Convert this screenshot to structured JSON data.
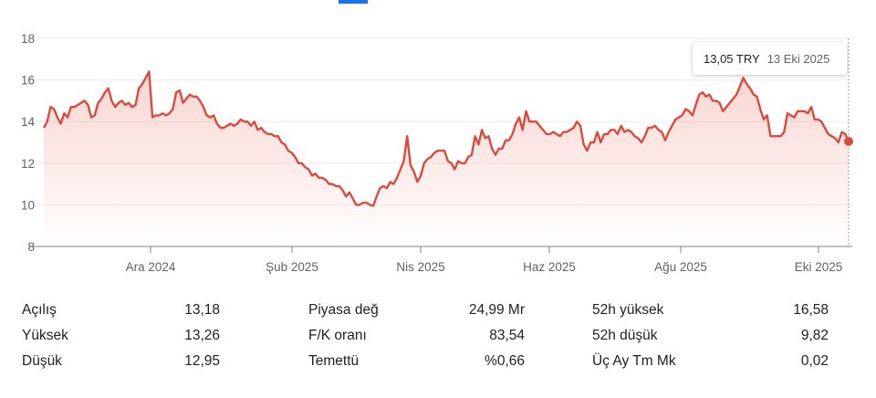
{
  "chart_data": {
    "type": "area",
    "ylim": [
      8,
      18
    ],
    "yticks": [
      "8",
      "10",
      "12",
      "14",
      "16",
      "18"
    ],
    "xtick_labels": [
      "Ara 2024",
      "Şub 2025",
      "Nis 2025",
      "Haz 2025",
      "Ağu 2025",
      "Eki 2025"
    ],
    "line_color": "#d94c3d",
    "grid": true,
    "series": [
      {
        "values": [
          13.7,
          14.0,
          14.7,
          14.6,
          14.2,
          13.9,
          14.4,
          14.2,
          14.7,
          14.7,
          14.8,
          14.9,
          15.0,
          14.8,
          14.2,
          14.3,
          14.9,
          15.1,
          15.4,
          15.6,
          15.0,
          14.7,
          14.9,
          15.0,
          14.8,
          14.9,
          14.7,
          14.8,
          15.6,
          15.8,
          16.1,
          16.4,
          14.2,
          14.3,
          14.3,
          14.4,
          14.3,
          14.4,
          14.6,
          15.4,
          15.5,
          14.9,
          15.1,
          15.3,
          15.2,
          15.2,
          15.0,
          14.7,
          14.3,
          14.2,
          14.3,
          13.9,
          13.7,
          13.7,
          13.8,
          13.9,
          13.8,
          13.9,
          14.1,
          14.0,
          14.0,
          13.8,
          14.0,
          13.6,
          13.7,
          13.5,
          13.4,
          13.4,
          13.3,
          13.3,
          13.0,
          12.9,
          12.6,
          12.5,
          12.3,
          12.0,
          12.0,
          11.8,
          11.7,
          11.4,
          11.5,
          11.3,
          11.3,
          11.2,
          11.0,
          11.0,
          10.9,
          10.9,
          10.7,
          10.4,
          10.6,
          10.3,
          10.0,
          10.0,
          10.1,
          10.1,
          10.0,
          9.95,
          10.4,
          10.8,
          10.9,
          10.8,
          11.1,
          11.0,
          11.3,
          11.7,
          12.1,
          13.3,
          11.9,
          11.6,
          11.1,
          11.4,
          12.0,
          12.2,
          12.3,
          12.5,
          12.6,
          12.6,
          12.6,
          12.1,
          12.0,
          11.7,
          12.1,
          12.0,
          12.0,
          12.3,
          12.4,
          13.3,
          12.9,
          13.6,
          13.2,
          13.3,
          12.7,
          12.4,
          12.7,
          12.7,
          13.1,
          13.1,
          13.4,
          13.9,
          14.2,
          13.6,
          14.5,
          14.0,
          14.0,
          14.0,
          13.8,
          13.6,
          13.4,
          13.4,
          13.5,
          13.4,
          13.3,
          13.5,
          13.5,
          13.6,
          13.7,
          14.0,
          13.8,
          12.9,
          12.6,
          13.0,
          13.0,
          13.5,
          13.0,
          13.4,
          13.4,
          13.6,
          13.6,
          13.4,
          13.8,
          13.5,
          13.6,
          13.5,
          13.3,
          13.2,
          13.0,
          13.3,
          13.7,
          13.7,
          13.8,
          13.6,
          13.5,
          13.1,
          13.5,
          13.8,
          14.1,
          14.2,
          14.3,
          14.6,
          14.5,
          14.3,
          14.8,
          15.3,
          15.4,
          15.2,
          15.3,
          15.0,
          15.0,
          14.9,
          14.5,
          14.7,
          14.9,
          15.1,
          15.3,
          15.7,
          16.1,
          15.8,
          15.6,
          15.3,
          15.2,
          14.6,
          14.1,
          14.3,
          13.3,
          13.3,
          13.3,
          13.3,
          13.5,
          14.4,
          14.3,
          14.2,
          14.5,
          14.5,
          14.5,
          14.4,
          14.7,
          14.1,
          14.1,
          14.0,
          13.7,
          13.4,
          13.3,
          13.2,
          13.0,
          13.5,
          13.4,
          13.05
        ]
      }
    ]
  },
  "tooltip": {
    "price": "13,05 TRY",
    "date": "13 Eki 2025"
  },
  "stats": [
    [
      {
        "label": "Açılış",
        "value": "13,18"
      },
      {
        "label": "Yüksek",
        "value": "13,26"
      },
      {
        "label": "Düşük",
        "value": "12,95"
      }
    ],
    [
      {
        "label": "Piyasa değ",
        "value": "24,99 Mr"
      },
      {
        "label": "F/K oranı",
        "value": "83,54"
      },
      {
        "label": "Temettü",
        "value": "%0,66"
      }
    ],
    [
      {
        "label": "52h yüksek",
        "value": "16,58"
      },
      {
        "label": "52h düşük",
        "value": "9,82"
      },
      {
        "label": "Üç Ay Tm Mk",
        "value": "0,02"
      }
    ]
  ]
}
